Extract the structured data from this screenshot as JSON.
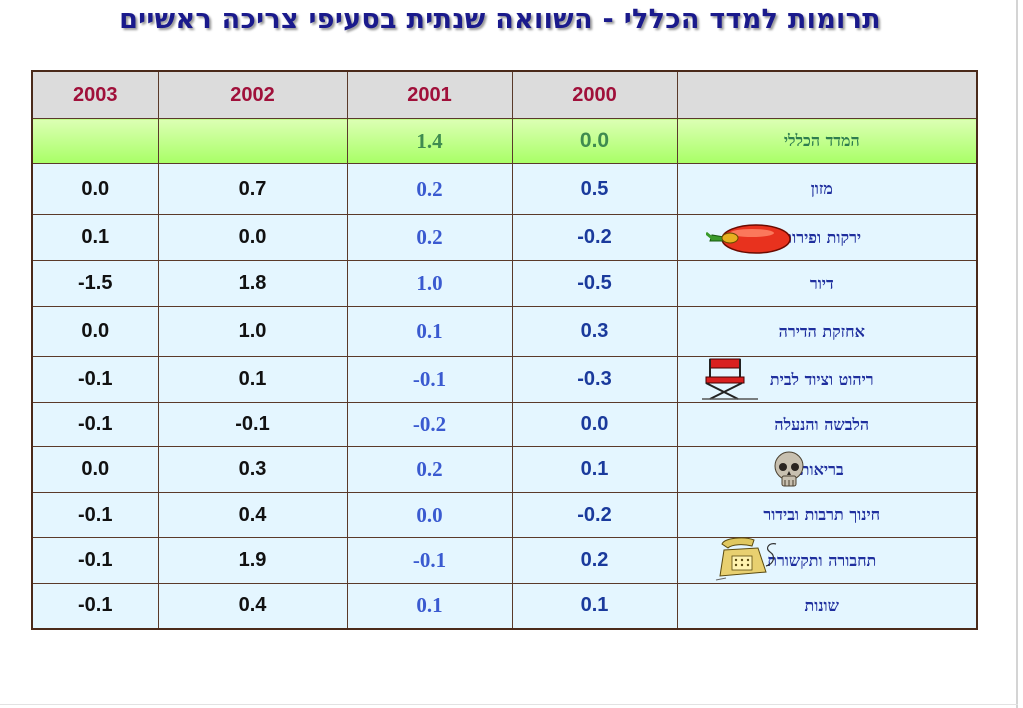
{
  "title": "תרומות למדד הכללי - השוואה שנתית בסעיפי צריכה ראשיים",
  "table": {
    "headers": [
      "",
      "2000",
      "2001",
      "2002",
      "2003"
    ],
    "total_row": {
      "label": "המדד הכללי",
      "y2000": "0.0",
      "y2001": "1.4",
      "y2002": "",
      "y2003": ""
    },
    "rows": [
      {
        "label": "מזון",
        "y2000": "0.5",
        "y2001": "0.2",
        "y2002": "0.7",
        "y2003": "0.0",
        "icon": ""
      },
      {
        "label": "ירקות ופירות",
        "y2000": "-0.2",
        "y2001": "0.2",
        "y2002": "0.0",
        "y2003": "0.1",
        "icon": "pepper-icon"
      },
      {
        "label": "דיור",
        "y2000": "-0.5",
        "y2001": "1.0",
        "y2002": "1.8",
        "y2003": "-1.5",
        "icon": ""
      },
      {
        "label": "אחזקת הדירה",
        "y2000": "0.3",
        "y2001": "0.1",
        "y2002": "1.0",
        "y2003": "0.0",
        "icon": ""
      },
      {
        "label": "ריהוט וציוד לבית",
        "y2000": "-0.3",
        "y2001": "-0.1",
        "y2002": "0.1",
        "y2003": "-0.1",
        "icon": "directors-chair-icon"
      },
      {
        "label": "הלבשה והנעלה",
        "y2000": "0.0",
        "y2001": "-0.2",
        "y2002": "-0.1",
        "y2003": "-0.1",
        "icon": ""
      },
      {
        "label": "בריאות",
        "y2000": "0.1",
        "y2001": "0.2",
        "y2002": "0.3",
        "y2003": "0.0",
        "icon": "skull-icon"
      },
      {
        "label": "חינוך תרבות ובידור",
        "y2000": "-0.2",
        "y2001": "0.0",
        "y2002": "0.4",
        "y2003": "-0.1",
        "icon": ""
      },
      {
        "label": "תחבורה ותקשורת",
        "y2000": "0.2",
        "y2001": "-0.1",
        "y2002": "1.9",
        "y2003": "-0.1",
        "icon": "telephone-icon"
      },
      {
        "label": "שונות",
        "y2000": "0.1",
        "y2001": "0.1",
        "y2002": "0.4",
        "y2003": "-0.1",
        "icon": ""
      }
    ]
  },
  "colors": {
    "title": "#1a1a8c",
    "header_text": "#a0103a",
    "header_bg": "#dcdcdc",
    "total_row_bg": "#b8ff80",
    "row_bg": "#e4f6ff",
    "label_text": "#1f2f9e",
    "value_blue": "#1a3a9c",
    "value_serif": "#3a5ad0"
  }
}
